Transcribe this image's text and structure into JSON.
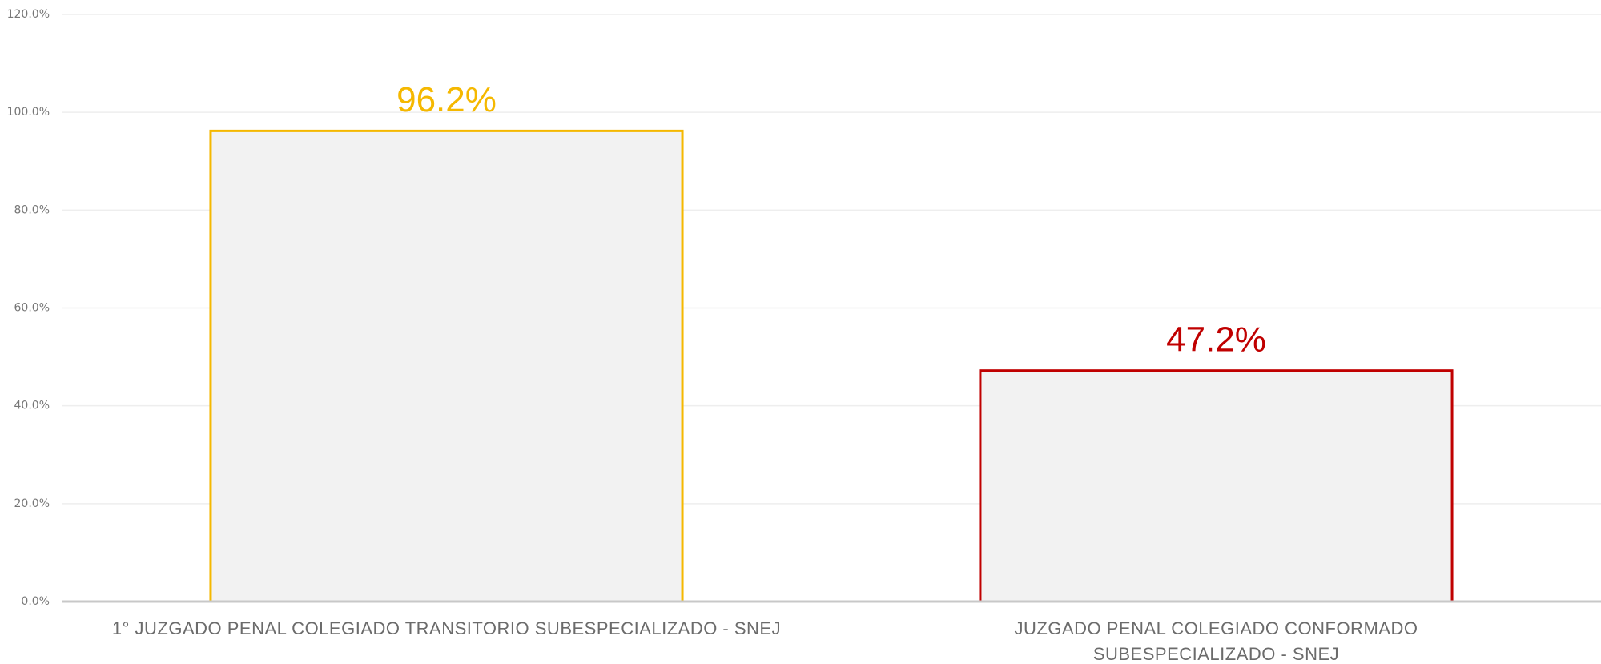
{
  "chart_data": {
    "type": "bar",
    "categories": [
      "1° JUZGADO PENAL COLEGIADO TRANSITORIO SUBESPECIALIZADO - SNEJ",
      "JUZGADO PENAL COLEGIADO CONFORMADO SUBESPECIALIZADO - SNEJ"
    ],
    "values": [
      96.2,
      47.2
    ],
    "value_labels": [
      "96.2%",
      "47.2%"
    ],
    "colors": [
      "#f5b800",
      "#c00000"
    ],
    "ylim": [
      0,
      120
    ],
    "yticks": [
      {
        "value": 0,
        "label": "0.0%"
      },
      {
        "value": 20,
        "label": "20.0%"
      },
      {
        "value": 40,
        "label": "40.0%"
      },
      {
        "value": 60,
        "label": "60.0%"
      },
      {
        "value": 80,
        "label": "80.0%"
      },
      {
        "value": 100,
        "label": "100.0%"
      },
      {
        "value": 120,
        "label": "120.0%"
      }
    ],
    "grid": true
  }
}
